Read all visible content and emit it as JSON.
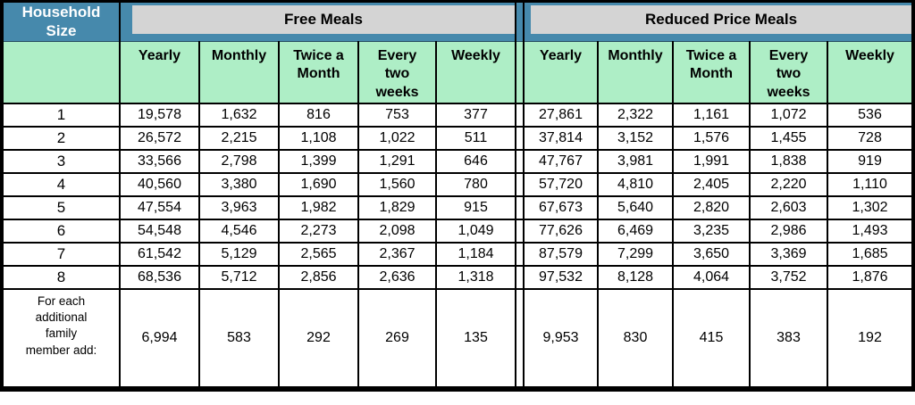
{
  "colors": {
    "band_blue": "#4689ac",
    "head_green": "#aeeec6",
    "bar_gray": "#d4d4d4",
    "border_black": "#000000"
  },
  "table": {
    "household_header": "Household\nSize",
    "sections": [
      {
        "title": "Free Meals",
        "columns": [
          "Yearly",
          "Monthly",
          "Twice a\nMonth",
          "Every\ntwo\nweeks",
          "Weekly"
        ]
      },
      {
        "title": "Reduced Price Meals",
        "columns": [
          "Yearly",
          "Monthly",
          "Twice a\nMonth",
          "Every\ntwo\nweeks",
          "Weekly"
        ]
      }
    ],
    "rows": [
      {
        "size": "1",
        "free": [
          "19,578",
          "1,632",
          "816",
          "753",
          "377"
        ],
        "reduced": [
          "27,861",
          "2,322",
          "1,161",
          "1,072",
          "536"
        ]
      },
      {
        "size": "2",
        "free": [
          "26,572",
          "2,215",
          "1,108",
          "1,022",
          "511"
        ],
        "reduced": [
          "37,814",
          "3,152",
          "1,576",
          "1,455",
          "728"
        ]
      },
      {
        "size": "3",
        "free": [
          "33,566",
          "2,798",
          "1,399",
          "1,291",
          "646"
        ],
        "reduced": [
          "47,767",
          "3,981",
          "1,991",
          "1,838",
          "919"
        ]
      },
      {
        "size": "4",
        "free": [
          "40,560",
          "3,380",
          "1,690",
          "1,560",
          "780"
        ],
        "reduced": [
          "57,720",
          "4,810",
          "2,405",
          "2,220",
          "1,110"
        ]
      },
      {
        "size": "5",
        "free": [
          "47,554",
          "3,963",
          "1,982",
          "1,829",
          "915"
        ],
        "reduced": [
          "67,673",
          "5,640",
          "2,820",
          "2,603",
          "1,302"
        ]
      },
      {
        "size": "6",
        "free": [
          "54,548",
          "4,546",
          "2,273",
          "2,098",
          "1,049"
        ],
        "reduced": [
          "77,626",
          "6,469",
          "3,235",
          "2,986",
          "1,493"
        ]
      },
      {
        "size": "7",
        "free": [
          "61,542",
          "5,129",
          "2,565",
          "2,367",
          "1,184"
        ],
        "reduced": [
          "87,579",
          "7,299",
          "3,650",
          "3,369",
          "1,685"
        ]
      },
      {
        "size": "8",
        "free": [
          "68,536",
          "5,712",
          "2,856",
          "2,636",
          "1,318"
        ],
        "reduced": [
          "97,532",
          "8,128",
          "4,064",
          "3,752",
          "1,876"
        ]
      }
    ],
    "additional": {
      "label": "For each\nadditional\nfamily\nmember add:",
      "free": [
        "6,994",
        "583",
        "292",
        "269",
        "135"
      ],
      "reduced": [
        "9,953",
        "830",
        "415",
        "383",
        "192"
      ]
    }
  }
}
